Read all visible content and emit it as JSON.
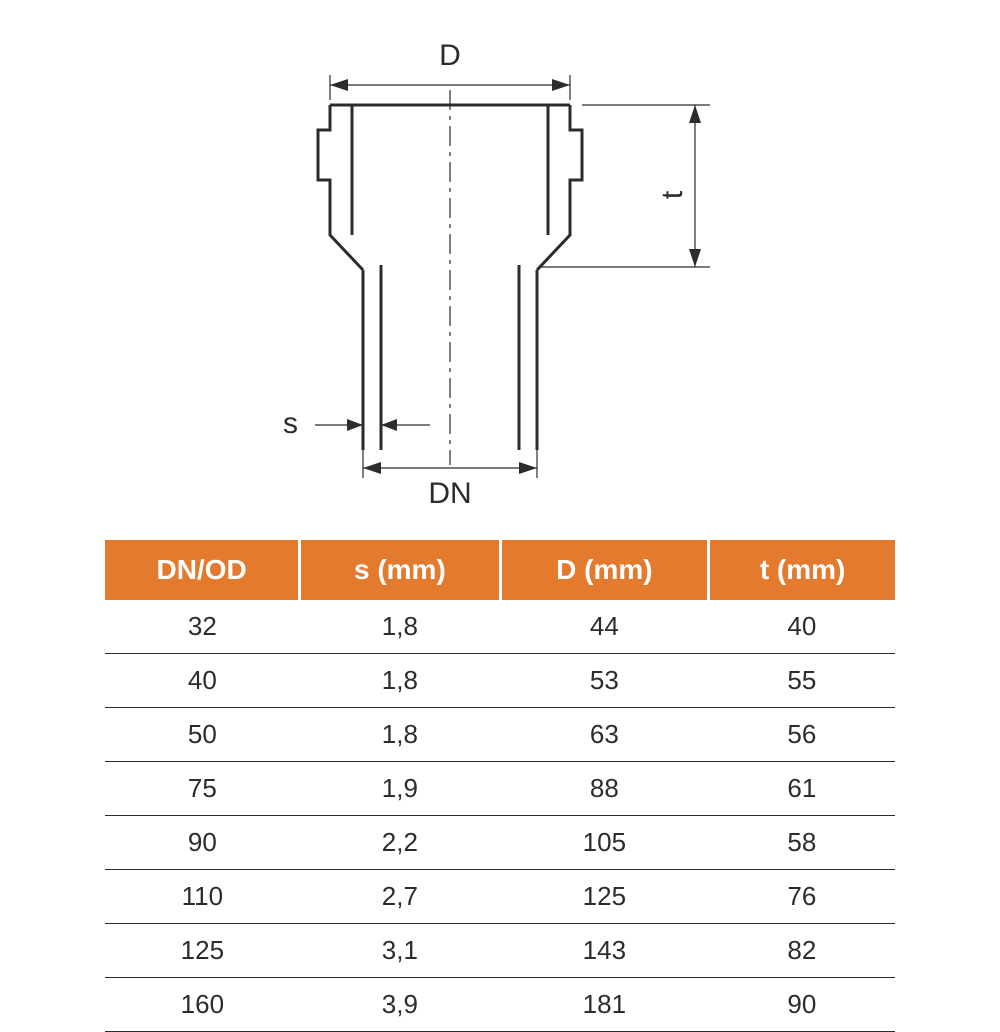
{
  "diagram": {
    "labels": {
      "D": "D",
      "DN": "DN",
      "s": "s",
      "t": "t"
    },
    "stroke_color": "#2c2c2c",
    "stroke_width_main": 3,
    "stroke_width_thin": 1.2,
    "background_color": "#ffffff"
  },
  "table": {
    "header_bg": "#e37a2e",
    "header_fg": "#ffffff",
    "border_color": "#2c2c2c",
    "cell_fg": "#2c2c2c",
    "header_fontsize": 28,
    "cell_fontsize": 26,
    "columns": [
      "DN/OD",
      "s (mm)",
      "D (mm)",
      "t (mm)"
    ],
    "rows": [
      [
        "32",
        "1,8",
        "44",
        "40"
      ],
      [
        "40",
        "1,8",
        "53",
        "55"
      ],
      [
        "50",
        "1,8",
        "63",
        "56"
      ],
      [
        "75",
        "1,9",
        "88",
        "61"
      ],
      [
        "90",
        "2,2",
        "105",
        "58"
      ],
      [
        "110",
        "2,7",
        "125",
        "76"
      ],
      [
        "125",
        "3,1",
        "143",
        "82"
      ],
      [
        "160",
        "3,9",
        "181",
        "90"
      ]
    ]
  }
}
